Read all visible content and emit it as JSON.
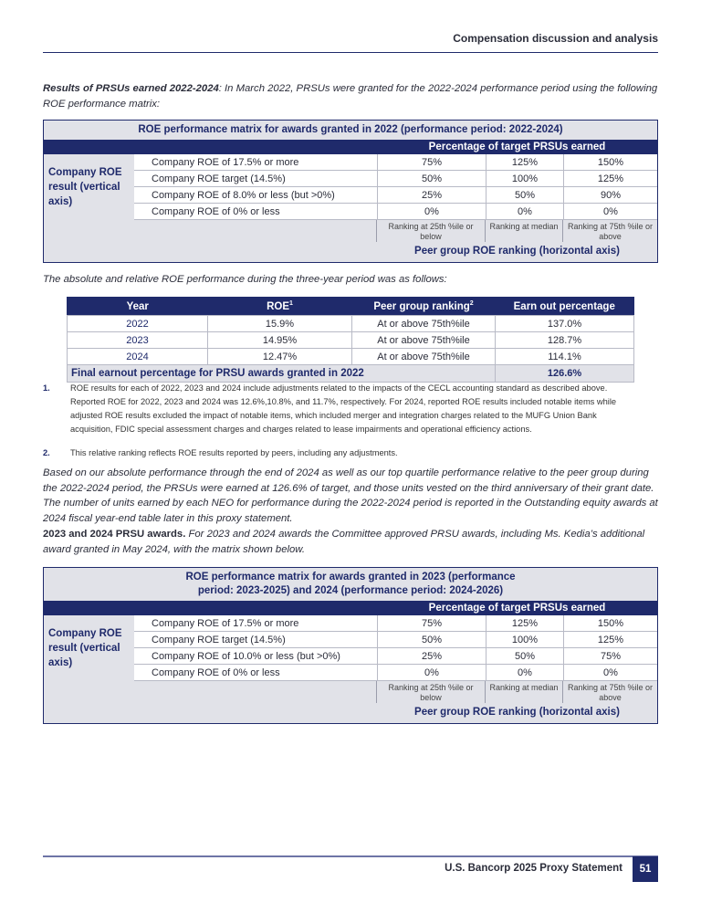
{
  "header": {
    "section": "Compensation discussion and analysis"
  },
  "intro": {
    "bold": "Results of PRSUs earned 2022-2024",
    "text": ": In March 2022, PRSUs were granted for the 2022-2024 performance period using the following ROE performance matrix:"
  },
  "matrix1": {
    "title": "ROE performance matrix for awards granted in 2022 (performance period: 2022-2024)",
    "pct_header": "Percentage of target PRSUs earned",
    "side_label": "Company ROE result (vertical axis)",
    "rows": [
      [
        "Company ROE of 17.5% or more",
        "75%",
        "125%",
        "150%"
      ],
      [
        "Company ROE target (14.5%)",
        "50%",
        "100%",
        "125%"
      ],
      [
        "Company ROE of 8.0% or less (but >0%)",
        "25%",
        "50%",
        "90%"
      ],
      [
        "Company ROE of 0% or less",
        "0%",
        "0%",
        "0%"
      ]
    ],
    "rankings": [
      "Ranking at 25th %ile or below",
      "Ranking at median",
      "Ranking at 75th %ile or above"
    ],
    "footer": "Peer group ROE ranking (horizontal axis)"
  },
  "para2": "The absolute and relative ROE performance during the three-year period was as follows:",
  "roe_table": {
    "headers": [
      "Year",
      "ROE",
      "Peer group ranking",
      "Earn out percentage"
    ],
    "sup1": "1",
    "sup2": "2",
    "rows": [
      [
        "2022",
        "15.9%",
        "At or above 75th%ile",
        "137.0%"
      ],
      [
        "2023",
        "14.95%",
        "At or above 75th%ile",
        "128.7%"
      ],
      [
        "2024",
        "12.47%",
        "At or above 75th%ile",
        "114.1%"
      ]
    ],
    "final_label": "Final earnout percentage for PRSU awards granted in 2022",
    "final_value": "126.6%"
  },
  "footnotes": [
    {
      "num": "1.",
      "text": "ROE results for each of 2022, 2023 and 2024 include adjustments related to the impacts of the CECL accounting standard as described above. Reported ROE for 2022, 2023 and 2024 was 12.6%,10.8%, and 11.7%, respectively. For 2024, reported ROE results included notable items while adjusted ROE results excluded the impact of notable items, which included merger and integration charges related to the MUFG Union Bank acquisition, FDIC special assessment charges and charges related to lease impairments and operational efficiency actions."
    },
    {
      "num": "2.",
      "text": "This relative ranking reflects ROE results reported by peers, including any adjustments."
    }
  ],
  "para3": "Based on our absolute performance through the end of 2024 as well as our top quartile performance relative to the peer group during the 2022-2024 period, the PRSUs were earned at 126.6% of target, and those units vested on the third anniversary of their grant date. The number of units earned by each NEO for performance during the 2022-2024 period is reported in the Outstanding equity awards at 2024 fiscal year-end table later in this proxy statement.",
  "para4": {
    "bold": "2023 and 2024 PRSU awards.",
    "text": " For 2023 and 2024 awards the Committee approved PRSU awards, including Ms. Kedia’s additional award granted in May 2024, with the matrix shown below."
  },
  "matrix2": {
    "title": "ROE performance matrix for awards granted in 2023 (performance period: 2023-2025) and 2024 (performance period: 2024-2026)",
    "pct_header": "Percentage of target PRSUs earned",
    "side_label": "Company ROE result (vertical axis)",
    "rows": [
      [
        "Company ROE of 17.5% or more",
        "75%",
        "125%",
        "150%"
      ],
      [
        "Company ROE target (14.5%)",
        "50%",
        "100%",
        "125%"
      ],
      [
        "Company ROE of 10.0% or less (but >0%)",
        "25%",
        "50%",
        "75%"
      ],
      [
        "Company ROE of 0% or less",
        "0%",
        "0%",
        "0%"
      ]
    ],
    "rankings": [
      "Ranking at 25th %ile or below",
      "Ranking at median",
      "Ranking at 75th %ile or above"
    ],
    "footer": "Peer group ROE ranking (horizontal axis)"
  },
  "footer": {
    "text": "U.S. Bancorp 2025 Proxy Statement",
    "page": "51"
  },
  "colors": {
    "navy": "#1f2a6b",
    "gray": "#e1e2e8"
  }
}
